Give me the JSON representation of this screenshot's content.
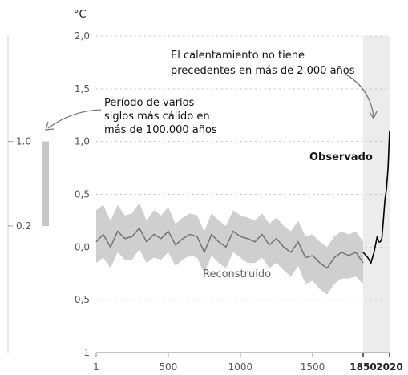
{
  "chart_data": {
    "type": "line",
    "y_unit": "°C",
    "ylim": [
      -1.0,
      2.0
    ],
    "y_ticks": [
      "2,0",
      "1,5",
      "1,0",
      "0,5",
      "0,0",
      "-0,5",
      "-1"
    ],
    "x_ticks": [
      "1",
      "500",
      "1000",
      "1500",
      "1850",
      "2020"
    ],
    "x_ticks_bold": [
      "1850",
      "2020"
    ],
    "xlim": [
      1,
      2020
    ],
    "grid": "horizontal-dashed",
    "highlight_period": [
      1850,
      2020
    ],
    "series": [
      {
        "name": "Reconstruido",
        "color": "#6e6e6e",
        "band_color": "#cfcfcf",
        "x": [
          1,
          50,
          100,
          150,
          200,
          250,
          300,
          350,
          400,
          450,
          500,
          550,
          600,
          650,
          700,
          750,
          800,
          850,
          900,
          950,
          1000,
          1050,
          1100,
          1150,
          1200,
          1250,
          1300,
          1350,
          1400,
          1450,
          1500,
          1550,
          1600,
          1650,
          1700,
          1750,
          1800,
          1850
        ],
        "y": [
          0.05,
          0.12,
          0.0,
          0.15,
          0.08,
          0.1,
          0.18,
          0.05,
          0.12,
          0.08,
          0.15,
          0.02,
          0.08,
          0.12,
          0.1,
          -0.05,
          0.12,
          0.05,
          0.0,
          0.15,
          0.1,
          0.08,
          0.05,
          0.12,
          0.02,
          0.08,
          0.0,
          -0.05,
          0.05,
          -0.1,
          -0.08,
          -0.15,
          -0.2,
          -0.1,
          -0.05,
          -0.08,
          -0.05,
          -0.15
        ],
        "lower": [
          -0.15,
          -0.1,
          -0.2,
          -0.05,
          -0.12,
          -0.12,
          -0.02,
          -0.15,
          -0.1,
          -0.12,
          -0.05,
          -0.18,
          -0.12,
          -0.08,
          -0.1,
          -0.25,
          -0.08,
          -0.15,
          -0.2,
          -0.05,
          -0.1,
          -0.15,
          -0.15,
          -0.1,
          -0.2,
          -0.15,
          -0.22,
          -0.28,
          -0.18,
          -0.35,
          -0.32,
          -0.4,
          -0.45,
          -0.35,
          -0.3,
          -0.3,
          -0.28,
          -0.35
        ],
        "upper": [
          0.35,
          0.4,
          0.25,
          0.4,
          0.3,
          0.32,
          0.42,
          0.25,
          0.35,
          0.3,
          0.38,
          0.22,
          0.28,
          0.32,
          0.3,
          0.15,
          0.32,
          0.25,
          0.2,
          0.35,
          0.3,
          0.28,
          0.25,
          0.32,
          0.22,
          0.28,
          0.2,
          0.15,
          0.25,
          0.1,
          0.12,
          0.05,
          0.0,
          0.1,
          0.15,
          0.12,
          0.15,
          0.05
        ]
      },
      {
        "name": "Observado",
        "color": "#000000",
        "x": [
          1850,
          1880,
          1900,
          1920,
          1940,
          1950,
          1960,
          1970,
          1980,
          1990,
          2000,
          2010,
          2020
        ],
        "y": [
          -0.05,
          -0.1,
          -0.15,
          -0.05,
          0.1,
          0.05,
          0.05,
          0.08,
          0.25,
          0.45,
          0.55,
          0.75,
          1.1
        ]
      }
    ],
    "side_bar": {
      "low": 0.2,
      "high": 1.0,
      "low_label": "0.2",
      "high_label": "1.0",
      "color": "#c6c6c6"
    },
    "annotations": {
      "top": [
        "El calentamiento no tiene",
        "precedentes en más de 2.000 años"
      ],
      "left": [
        "Período de varios",
        "siglos más cálido en",
        "más de 100.000 años"
      ]
    }
  }
}
